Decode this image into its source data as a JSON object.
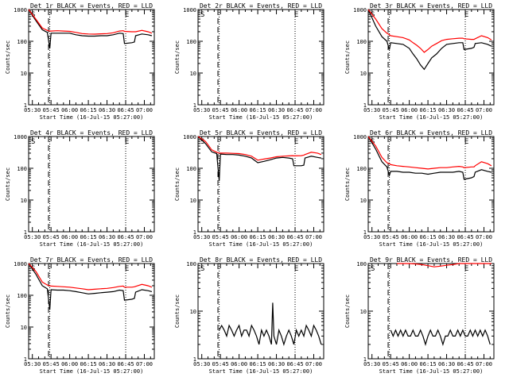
{
  "figure": {
    "title_template_note": "",
    "xlabel": "Start Time (16-Jul-15 05:27:00)",
    "ylabel": "Counts/sec",
    "x_ticks": [
      "05:30",
      "05:45",
      "06:00",
      "06:15",
      "06:30",
      "06:45",
      "07:00"
    ],
    "y_ticks": [
      "1",
      "10",
      "100",
      "1000"
    ],
    "start_marker": "S",
    "end_marker": "E",
    "colors": {
      "events": "#000000",
      "lld": "#ff0000",
      "axes": "#000000",
      "background": "#ffffff"
    }
  },
  "chart_data": [
    {
      "type": "line",
      "title": "Det 1r BLACK = Events, RED = LLD",
      "xlabel": "Start Time (16-Jul-15 05:27:00)",
      "ylabel": "Counts/sec",
      "yscale": "log",
      "xlim": [
        "05:27",
        "07:08"
      ],
      "ylim": [
        1,
        1000
      ],
      "series": [
        {
          "name": "Events",
          "color": "#000000",
          "x": [
            "05:27",
            "05:32",
            "05:38",
            "05:42",
            "05:44",
            "05:45",
            "05:50",
            "05:55",
            "06:00",
            "06:05",
            "06:10",
            "06:15",
            "06:20",
            "06:25",
            "06:30",
            "06:35",
            "06:40",
            "06:43",
            "06:44",
            "06:50",
            "06:52",
            "06:53",
            "06:58",
            "07:03",
            "07:06"
          ],
          "y": [
            1000,
            500,
            230,
            190,
            60,
            180,
            180,
            180,
            180,
            160,
            150,
            145,
            145,
            150,
            150,
            160,
            180,
            175,
            85,
            90,
            95,
            150,
            170,
            160,
            150
          ]
        },
        {
          "name": "LLD",
          "color": "#ff0000",
          "x": [
            "05:27",
            "05:32",
            "05:38",
            "05:42",
            "05:44",
            "05:45",
            "05:50",
            "05:55",
            "06:00",
            "06:05",
            "06:10",
            "06:15",
            "06:20",
            "06:25",
            "06:30",
            "06:35",
            "06:40",
            "06:43",
            "06:44",
            "06:50",
            "06:52",
            "06:53",
            "06:58",
            "07:03",
            "07:06"
          ],
          "y": [
            1100,
            550,
            260,
            220,
            210,
            210,
            215,
            210,
            205,
            190,
            175,
            170,
            168,
            172,
            175,
            185,
            210,
            215,
            205,
            200,
            200,
            200,
            220,
            200,
            180
          ]
        }
      ]
    },
    {
      "type": "line",
      "title": "Det 2r BLACK = Events, RED = LLD",
      "xlabel": "Start Time (16-Jul-15 05:27:00)",
      "ylabel": "Counts/sec",
      "yscale": "log",
      "xlim": [
        "05:27",
        "07:08"
      ],
      "ylim": [
        1,
        1000
      ],
      "series": []
    },
    {
      "type": "line",
      "title": "Det 3r BLACK = Events, RED = LLD",
      "xlabel": "Start Time (16-Jul-15 05:27:00)",
      "ylabel": "Counts/sec",
      "yscale": "log",
      "xlim": [
        "05:27",
        "07:08"
      ],
      "ylim": [
        1,
        1000
      ],
      "series": [
        {
          "name": "Events",
          "color": "#000000",
          "x": [
            "05:27",
            "05:33",
            "05:38",
            "05:42",
            "05:44",
            "05:45",
            "05:50",
            "05:55",
            "06:00",
            "06:03",
            "06:06",
            "06:09",
            "06:12",
            "06:15",
            "06:18",
            "06:22",
            "06:26",
            "06:30",
            "06:35",
            "06:40",
            "06:43",
            "06:44",
            "06:50",
            "06:52",
            "06:53",
            "06:58",
            "07:03",
            "07:06"
          ],
          "y": [
            1000,
            300,
            140,
            100,
            55,
            90,
            85,
            80,
            60,
            40,
            28,
            18,
            13,
            20,
            30,
            40,
            60,
            80,
            85,
            90,
            90,
            55,
            60,
            65,
            85,
            90,
            80,
            70
          ]
        },
        {
          "name": "LLD",
          "color": "#ff0000",
          "x": [
            "05:27",
            "05:33",
            "05:38",
            "05:42",
            "05:44",
            "05:45",
            "05:50",
            "05:55",
            "06:00",
            "06:03",
            "06:06",
            "06:09",
            "06:12",
            "06:15",
            "06:18",
            "06:22",
            "06:26",
            "06:30",
            "06:35",
            "06:40",
            "06:43",
            "06:44",
            "06:50",
            "06:52",
            "06:53",
            "06:58",
            "07:03",
            "07:06"
          ],
          "y": [
            1100,
            500,
            250,
            180,
            160,
            150,
            140,
            130,
            110,
            90,
            75,
            60,
            45,
            55,
            70,
            85,
            105,
            115,
            120,
            125,
            125,
            120,
            115,
            115,
            120,
            150,
            130,
            110
          ]
        }
      ]
    },
    {
      "type": "line",
      "title": "Det 4r BLACK = Events, RED = LLD",
      "xlabel": "Start Time (16-Jul-15 05:27:00)",
      "ylabel": "Counts/sec",
      "yscale": "log",
      "xlim": [
        "05:27",
        "07:08"
      ],
      "ylim": [
        1,
        1000
      ],
      "series": []
    },
    {
      "type": "line",
      "title": "Det 5r BLACK = Events, RED = LLD",
      "xlabel": "Start Time (16-Jul-15 05:27:00)",
      "ylabel": "Counts/sec",
      "yscale": "log",
      "xlim": [
        "05:27",
        "07:08"
      ],
      "ylim": [
        1,
        1000
      ],
      "series": [
        {
          "name": "Events",
          "color": "#000000",
          "x": [
            "05:27",
            "05:33",
            "05:38",
            "05:42",
            "05:44",
            "05:45",
            "05:50",
            "05:55",
            "06:00",
            "06:05",
            "06:10",
            "06:15",
            "06:20",
            "06:25",
            "06:30",
            "06:35",
            "06:40",
            "06:43",
            "06:44",
            "06:50",
            "06:52",
            "06:53",
            "06:58",
            "07:03",
            "07:06"
          ],
          "y": [
            1000,
            600,
            330,
            290,
            40,
            280,
            270,
            270,
            260,
            240,
            210,
            150,
            165,
            185,
            210,
            220,
            210,
            200,
            120,
            120,
            125,
            210,
            240,
            220,
            210
          ]
        },
        {
          "name": "LLD",
          "color": "#ff0000",
          "x": [
            "05:27",
            "05:33",
            "05:38",
            "05:42",
            "05:44",
            "05:45",
            "05:50",
            "05:55",
            "06:00",
            "06:05",
            "06:10",
            "06:15",
            "06:20",
            "06:25",
            "06:30",
            "06:35",
            "06:40",
            "06:43",
            "06:44",
            "06:50",
            "06:52",
            "06:53",
            "06:58",
            "07:03",
            "07:06"
          ],
          "y": [
            1100,
            700,
            380,
            320,
            300,
            300,
            300,
            295,
            290,
            270,
            240,
            180,
            195,
            210,
            230,
            240,
            245,
            250,
            245,
            250,
            260,
            270,
            320,
            300,
            270
          ]
        }
      ]
    },
    {
      "type": "line",
      "title": "Det 6r BLACK = Events, RED = LLD",
      "xlabel": "Start Time (16-Jul-15 05:27:00)",
      "ylabel": "Counts/sec",
      "yscale": "log",
      "xlim": [
        "05:27",
        "07:08"
      ],
      "ylim": [
        1,
        1000
      ],
      "series": [
        {
          "name": "Events",
          "color": "#000000",
          "x": [
            "05:27",
            "05:33",
            "05:38",
            "05:42",
            "05:44",
            "05:45",
            "05:50",
            "05:55",
            "06:00",
            "06:05",
            "06:10",
            "06:15",
            "06:20",
            "06:25",
            "06:30",
            "06:35",
            "06:40",
            "06:43",
            "06:44",
            "06:50",
            "06:52",
            "06:53",
            "06:58",
            "07:03",
            "07:06"
          ],
          "y": [
            1000,
            400,
            160,
            110,
            60,
            80,
            80,
            75,
            75,
            70,
            70,
            65,
            70,
            75,
            75,
            75,
            80,
            75,
            45,
            50,
            55,
            75,
            90,
            80,
            75
          ]
        },
        {
          "name": "LLD",
          "color": "#ff0000",
          "x": [
            "05:27",
            "05:33",
            "05:38",
            "05:42",
            "05:44",
            "05:45",
            "05:50",
            "05:55",
            "06:00",
            "06:05",
            "06:10",
            "06:15",
            "06:20",
            "06:25",
            "06:30",
            "06:35",
            "06:40",
            "06:43",
            "06:44",
            "06:50",
            "06:52",
            "06:53",
            "06:58",
            "07:03",
            "07:06"
          ],
          "y": [
            1100,
            500,
            220,
            150,
            140,
            130,
            120,
            115,
            110,
            105,
            100,
            95,
            100,
            105,
            105,
            110,
            115,
            110,
            105,
            110,
            110,
            120,
            160,
            140,
            120
          ]
        }
      ]
    },
    {
      "type": "line",
      "title": "Det 7r BLACK = Events, RED = LLD",
      "xlabel": "Start Time (16-Jul-15 05:27:00)",
      "ylabel": "Counts/sec",
      "yscale": "log",
      "xlim": [
        "05:27",
        "07:08"
      ],
      "ylim": [
        1,
        1000
      ],
      "series": [
        {
          "name": "Events",
          "color": "#000000",
          "x": [
            "05:27",
            "05:33",
            "05:38",
            "05:42",
            "05:44",
            "05:45",
            "05:50",
            "05:55",
            "06:00",
            "06:05",
            "06:10",
            "06:15",
            "06:20",
            "06:25",
            "06:30",
            "06:35",
            "06:40",
            "06:43",
            "06:44",
            "06:50",
            "06:52",
            "06:53",
            "06:58",
            "07:03",
            "07:06"
          ],
          "y": [
            1000,
            450,
            200,
            160,
            35,
            150,
            145,
            145,
            140,
            130,
            120,
            110,
            115,
            120,
            125,
            130,
            145,
            140,
            70,
            75,
            80,
            125,
            150,
            140,
            130
          ]
        },
        {
          "name": "LLD",
          "color": "#ff0000",
          "x": [
            "05:27",
            "05:33",
            "05:38",
            "05:42",
            "05:44",
            "05:45",
            "05:50",
            "05:55",
            "06:00",
            "06:05",
            "06:10",
            "06:15",
            "06:20",
            "06:25",
            "06:30",
            "06:35",
            "06:40",
            "06:43",
            "06:44",
            "06:50",
            "06:52",
            "06:53",
            "06:58",
            "07:03",
            "07:06"
          ],
          "y": [
            1100,
            550,
            260,
            210,
            200,
            195,
            190,
            185,
            180,
            170,
            160,
            150,
            155,
            160,
            165,
            175,
            190,
            195,
            180,
            180,
            185,
            190,
            220,
            200,
            180
          ]
        }
      ]
    },
    {
      "type": "line",
      "title": "Det 8r BLACK = Events, RED = LLD",
      "xlabel": "Start Time (16-Jul-15 05:27:00)",
      "ylabel": "Counts/sec",
      "yscale": "log",
      "xlim": [
        "05:27",
        "07:08"
      ],
      "ylim": [
        1,
        100
      ],
      "series": [
        {
          "name": "Events",
          "color": "#000000",
          "x": [
            "05:44",
            "05:46",
            "05:48",
            "05:50",
            "05:52",
            "05:54",
            "05:56",
            "05:58",
            "06:00",
            "06:02",
            "06:04",
            "06:06",
            "06:08",
            "06:10",
            "06:12",
            "06:14",
            "06:16",
            "06:18",
            "06:20",
            "06:22",
            "06:24",
            "06:26",
            "06:27",
            "06:28",
            "06:30",
            "06:32",
            "06:34",
            "06:36",
            "06:38",
            "06:40",
            "06:42",
            "06:44",
            "06:46",
            "06:48",
            "06:50",
            "06:52",
            "06:54",
            "06:56",
            "06:58",
            "07:00",
            "07:02",
            "07:04",
            "07:06"
          ],
          "y": [
            4,
            5,
            4,
            3,
            5,
            4,
            3,
            4,
            5,
            3,
            4,
            4,
            3,
            5,
            4,
            3,
            2,
            4,
            3,
            4,
            3,
            2,
            15,
            3,
            2,
            4,
            3,
            2,
            3,
            4,
            3,
            2,
            4,
            3,
            4,
            3,
            5,
            4,
            3,
            5,
            4,
            3,
            2
          ]
        },
        {
          "name": "LLD",
          "color": "#ff0000",
          "x": [],
          "y": []
        }
      ]
    },
    {
      "type": "line",
      "title": "Det 9r BLACK = Events, RED = LLD",
      "xlabel": "Start Time (16-Jul-15 05:27:00)",
      "ylabel": "Counts/sec",
      "yscale": "log",
      "xlim": [
        "05:27",
        "07:08"
      ],
      "ylim": [
        1,
        100
      ],
      "series": [
        {
          "name": "Events",
          "color": "#000000",
          "x": [
            "05:45",
            "05:47",
            "05:49",
            "05:51",
            "05:53",
            "05:55",
            "05:57",
            "05:59",
            "06:01",
            "06:03",
            "06:05",
            "06:07",
            "06:09",
            "06:11",
            "06:13",
            "06:15",
            "06:17",
            "06:19",
            "06:21",
            "06:23",
            "06:25",
            "06:27",
            "06:29",
            "06:31",
            "06:33",
            "06:35",
            "06:37",
            "06:39",
            "06:41",
            "06:43",
            "06:45",
            "06:47",
            "06:49",
            "06:51",
            "06:53",
            "06:55",
            "06:57",
            "06:59",
            "07:01",
            "07:03",
            "07:05"
          ],
          "y": [
            4,
            3,
            4,
            3,
            4,
            3,
            4,
            3,
            3,
            4,
            3,
            3,
            4,
            3,
            2,
            3,
            4,
            3,
            3,
            4,
            3,
            2,
            3,
            3,
            4,
            3,
            3,
            4,
            3,
            4,
            3,
            3,
            4,
            3,
            4,
            3,
            4,
            3,
            4,
            3,
            2
          ]
        },
        {
          "name": "LLD",
          "color": "#ff0000",
          "x": [
            "05:50",
            "05:55",
            "06:00",
            "06:05",
            "06:10",
            "06:15",
            "06:20",
            "06:25",
            "06:30",
            "06:35",
            "06:40",
            "06:45",
            "06:50",
            "06:55",
            "07:00",
            "07:06"
          ],
          "y": [
            100,
            100,
            100,
            98,
            95,
            90,
            85,
            88,
            92,
            95,
            100,
            100,
            100,
            100,
            100,
            100
          ]
        }
      ]
    }
  ]
}
